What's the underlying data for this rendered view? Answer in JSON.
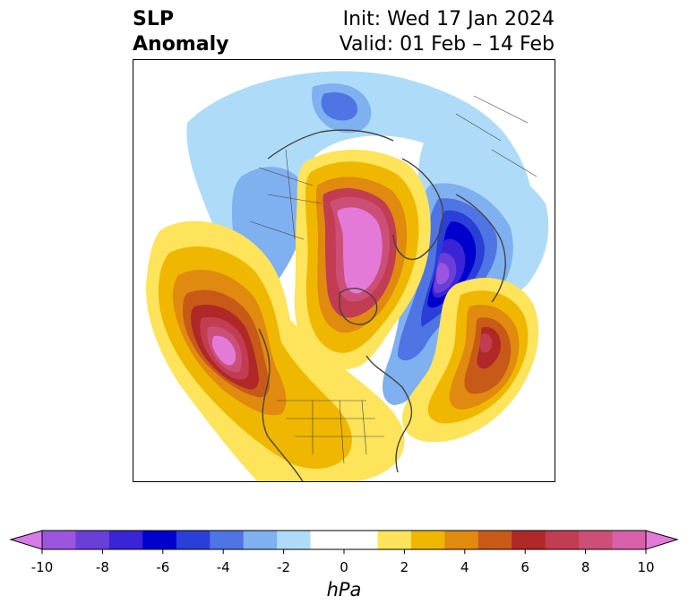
{
  "title": {
    "left_line1": "SLP",
    "left_line2": "Anomaly",
    "right_line1": "Init: Wed 17 Jan 2024",
    "right_line2": "Valid: 01 Feb – 14 Feb"
  },
  "colorbar": {
    "unit": "hPa",
    "ticks": [
      "-10",
      "-8",
      "-6",
      "-4",
      "-2",
      "0",
      "2",
      "4",
      "6",
      "8",
      "10"
    ],
    "colors": [
      "#d77be8",
      "#9b55e0",
      "#6a3fd8",
      "#3b23d8",
      "#0000cc",
      "#2a3fd8",
      "#4f74e4",
      "#7fb0f0",
      "#aedcf8",
      "#ffffff",
      "#ffffff",
      "#fde45a",
      "#f0b700",
      "#e08a0f",
      "#c85a18",
      "#b02828",
      "#c23c52",
      "#cc4f78",
      "#d760a8",
      "#e47ad8"
    ],
    "extend": "both"
  },
  "map": {
    "projection": "north-polar-stereographic",
    "field": "sea-level-pressure-anomaly"
  }
}
